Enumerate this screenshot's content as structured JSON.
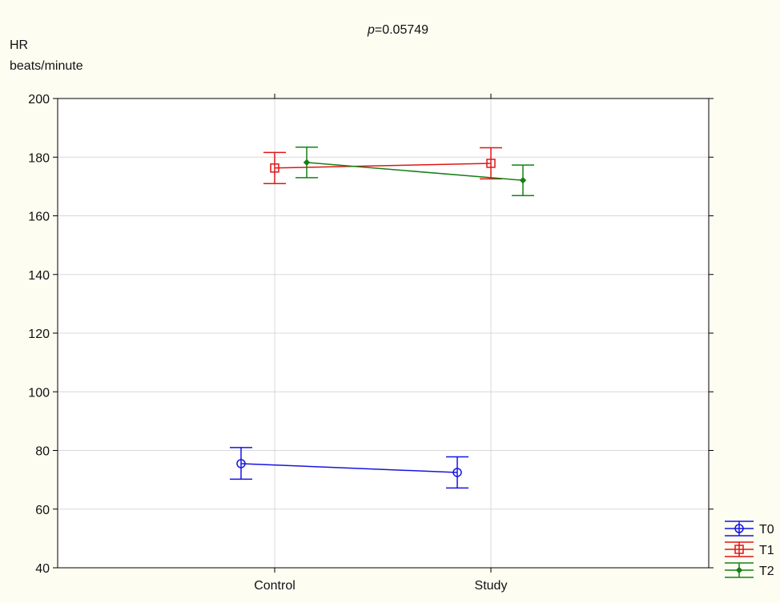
{
  "chart_data": {
    "type": "line",
    "title_prefix": "p",
    "title_value": "=0.05749",
    "ylabel_line1": "HR",
    "ylabel_line2": "beats/minute",
    "xlabel": "",
    "categories": [
      "Control",
      "Study"
    ],
    "ylim": [
      40,
      200
    ],
    "yticks": [
      "40",
      "60",
      "80",
      "100",
      "120",
      "140",
      "160",
      "180",
      "200"
    ],
    "grid": true,
    "legend_position": "bottom-right",
    "series": [
      {
        "name": "T0",
        "color": "#1515e0",
        "marker": "circle",
        "values": [
          75.5,
          72.5
        ],
        "lower": [
          70.2,
          67.2
        ],
        "upper": [
          81.0,
          77.8
        ]
      },
      {
        "name": "T1",
        "color": "#e01515",
        "marker": "square",
        "values": [
          176.3,
          177.9
        ],
        "lower": [
          171.0,
          172.6
        ],
        "upper": [
          181.6,
          183.2
        ]
      },
      {
        "name": "T2",
        "color": "#158015",
        "marker": "diamond",
        "values": [
          178.2,
          172.1
        ],
        "lower": [
          173.0,
          166.9
        ],
        "upper": [
          183.4,
          177.3
        ]
      }
    ]
  }
}
